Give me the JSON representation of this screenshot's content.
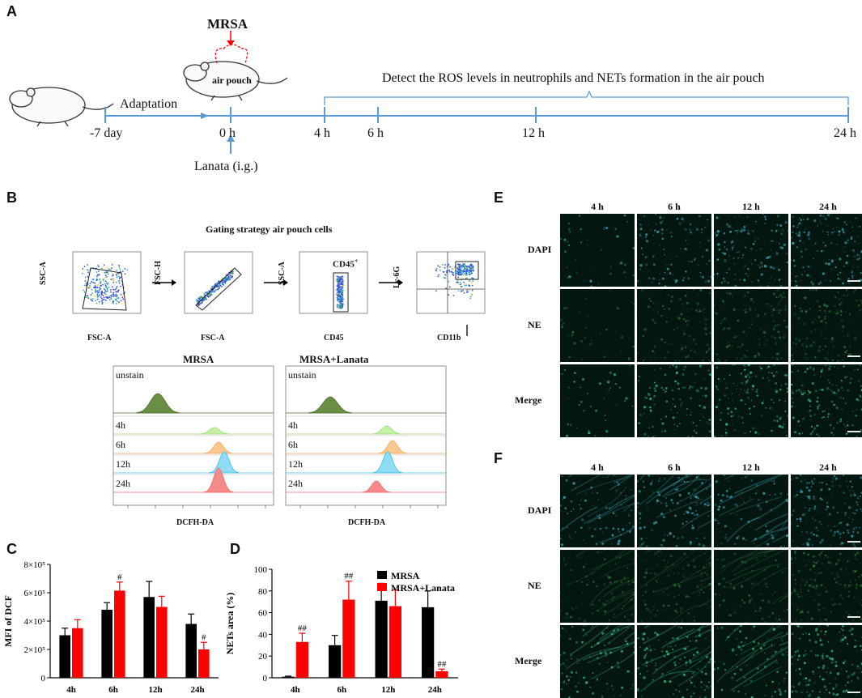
{
  "panels": {
    "A": "A",
    "B": "B",
    "C": "C",
    "D": "D",
    "E": "E",
    "F": "F"
  },
  "timeline": {
    "mrsa": "MRSA",
    "air_pouch": "air pouch",
    "adaptation": "Adaptation",
    "lanata": "Lanata (i.g.)",
    "bracket_text": "Detect the ROS levels in neutrophils and NETs formation in the air pouch",
    "ticks": [
      "-7 day",
      "0 h",
      "4 h",
      "6 h",
      "12 h",
      "24 h"
    ]
  },
  "gating": {
    "title": "Gating strategy air pouch cells",
    "plots": [
      {
        "ylabel": "SSC-A",
        "xlabel": "FSC-A"
      },
      {
        "ylabel": "FSC-H",
        "xlabel": "FSC-A"
      },
      {
        "ylabel": "SSC-A",
        "xlabel": "CD45",
        "gate": "CD45",
        "gate_sup": "+"
      },
      {
        "ylabel": "Ly-6G",
        "xlabel": "CD11b"
      }
    ]
  },
  "histograms": [
    {
      "title": "MRSA",
      "xlabel": "DCFH-DA",
      "rows": [
        "unstain",
        "4h",
        "6h",
        "12h",
        "24h"
      ]
    },
    {
      "title": "MRSA+Lanata",
      "xlabel": "DCFH-DA",
      "rows": [
        "unstain",
        "4h",
        "6h",
        "12h",
        "24h"
      ]
    }
  ],
  "chart_data": [
    {
      "type": "bar",
      "panel": "C",
      "ylabel": "MFI of DCF",
      "categories": [
        "4h",
        "6h",
        "12h",
        "24h"
      ],
      "yticks": [
        "0",
        "2×10⁵",
        "4×10⁵",
        "6×10⁵",
        "8×10⁵"
      ],
      "ylim": [
        0,
        800000
      ],
      "series": [
        {
          "name": "MRSA",
          "color": "#000000",
          "values": [
            300000,
            480000,
            570000,
            380000
          ],
          "errors": [
            50000,
            50000,
            110000,
            70000
          ]
        },
        {
          "name": "MRSA+Lanata",
          "color": "#ff0000",
          "values": [
            350000,
            615000,
            500000,
            200000
          ],
          "errors": [
            60000,
            60000,
            75000,
            50000
          ]
        }
      ],
      "annotations": [
        {
          "category": "6h",
          "series": "MRSA+Lanata",
          "text": "#"
        },
        {
          "category": "24h",
          "series": "MRSA+Lanata",
          "text": "#"
        }
      ]
    },
    {
      "type": "bar",
      "panel": "D",
      "ylabel": "NETs area (%)",
      "categories": [
        "4h",
        "6h",
        "12h",
        "24h"
      ],
      "yticks": [
        "0",
        "20",
        "40",
        "60",
        "80",
        "100"
      ],
      "ylim": [
        0,
        100
      ],
      "legend": [
        "MRSA",
        "MRSA+Lanata"
      ],
      "series": [
        {
          "name": "MRSA",
          "color": "#000000",
          "values": [
            1,
            30,
            71,
            65
          ],
          "errors": [
            0.5,
            9,
            16,
            15
          ]
        },
        {
          "name": "MRSA+Lanata",
          "color": "#ff0000",
          "values": [
            33,
            72,
            66,
            6
          ],
          "errors": [
            8,
            17,
            15,
            2
          ]
        }
      ],
      "annotations": [
        {
          "category": "4h",
          "series": "MRSA+Lanata",
          "text": "##"
        },
        {
          "category": "6h",
          "series": "MRSA+Lanata",
          "text": "##"
        },
        {
          "category": "24h",
          "series": "MRSA+Lanata",
          "text": "##"
        }
      ]
    }
  ],
  "microscopy": [
    {
      "panel": "E",
      "cols": [
        "4 h",
        "6 h",
        "12 h",
        "24 h"
      ],
      "rows": [
        "DAPI",
        "NE",
        "Merge"
      ]
    },
    {
      "panel": "F",
      "cols": [
        "4 h",
        "6 h",
        "12 h",
        "24 h"
      ],
      "rows": [
        "DAPI",
        "NE",
        "Merge"
      ]
    }
  ],
  "colors": {
    "blue": "#5b9bd5",
    "red": "#ff0000",
    "black": "#000000"
  }
}
